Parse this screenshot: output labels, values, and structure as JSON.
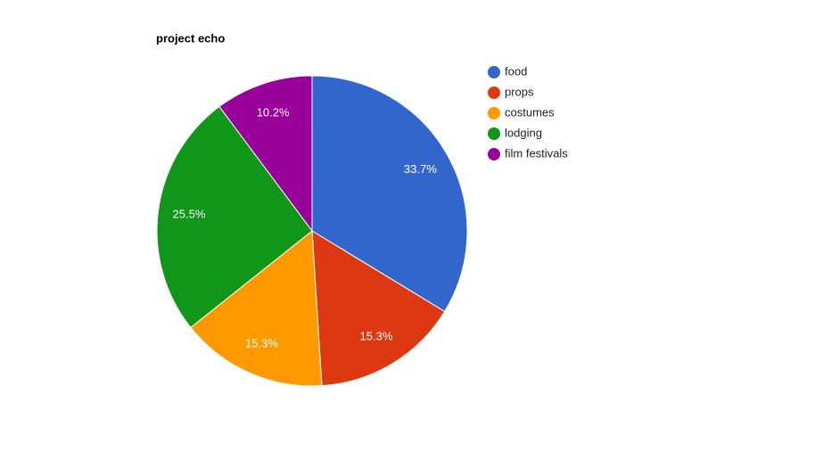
{
  "chart_data": {
    "type": "pie",
    "title": "project echo",
    "categories": [
      "food",
      "props",
      "costumes",
      "lodging",
      "film festivals"
    ],
    "values": [
      33.7,
      15.3,
      15.3,
      25.5,
      10.2
    ],
    "value_labels": [
      "33.7%",
      "15.3%",
      "15.3%",
      "25.5%",
      "10.2%"
    ],
    "colors": [
      "#3366cc",
      "#dc3912",
      "#ff9900",
      "#109618",
      "#990099"
    ],
    "legend": "right"
  }
}
